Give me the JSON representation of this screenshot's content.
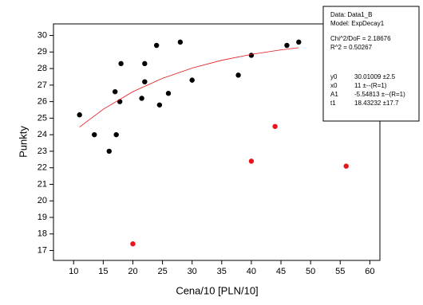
{
  "chart_data": {
    "type": "scatter",
    "xlabel": "Cena/10  [PLN/10]",
    "ylabel": "Punkty",
    "xlim": [
      6.6,
      61.7
    ],
    "xticks": [
      10,
      15,
      20,
      25,
      30,
      35,
      40,
      45,
      50,
      55,
      60
    ],
    "ylim": [
      16.4,
      30.7
    ],
    "yticks": [
      17,
      18,
      19,
      20,
      21,
      22,
      23,
      24,
      25,
      26,
      27,
      28,
      29,
      30
    ],
    "series": [
      {
        "mode": "markers",
        "color": "#000000",
        "x": [
          11,
          13.5,
          16,
          17,
          17.2,
          17.8,
          18,
          21.5,
          22,
          22,
          24,
          24.5,
          26,
          28,
          30,
          37.8,
          40,
          46,
          48
        ],
        "values": [
          25.2,
          24,
          23,
          26.6,
          24,
          26,
          28.3,
          26.2,
          27.2,
          28.3,
          29.4,
          25.8,
          26.5,
          29.6,
          27.3,
          27.6,
          28.8,
          29.4,
          29.6
        ]
      },
      {
        "mode": "markers",
        "color": "#e8141a",
        "x": [
          20,
          40,
          44,
          56
        ],
        "values": [
          17.4,
          22.4,
          24.5,
          22.1
        ]
      },
      {
        "mode": "line",
        "color": "#e8141a",
        "x": [
          11,
          15,
          20,
          25,
          30,
          35,
          40,
          45,
          48
        ],
        "values": [
          24.46,
          25.54,
          26.6,
          27.41,
          28.03,
          28.5,
          28.86,
          29.13,
          29.26
        ]
      }
    ],
    "annotation": {
      "lines": [
        "Data: Data1_B",
        "Model: ExpDecay1",
        "Chi^2/DoF = 2.18676",
        "R^2 = 0.50267"
      ],
      "params": [
        [
          "y0",
          "30.01009 ±2.5"
        ],
        [
          "x0",
          "11 ±--(R=1)"
        ],
        [
          "A1",
          "-5.54813 ±--(R=1)"
        ],
        [
          "t1",
          "18.43232 ±17.7"
        ]
      ]
    }
  }
}
